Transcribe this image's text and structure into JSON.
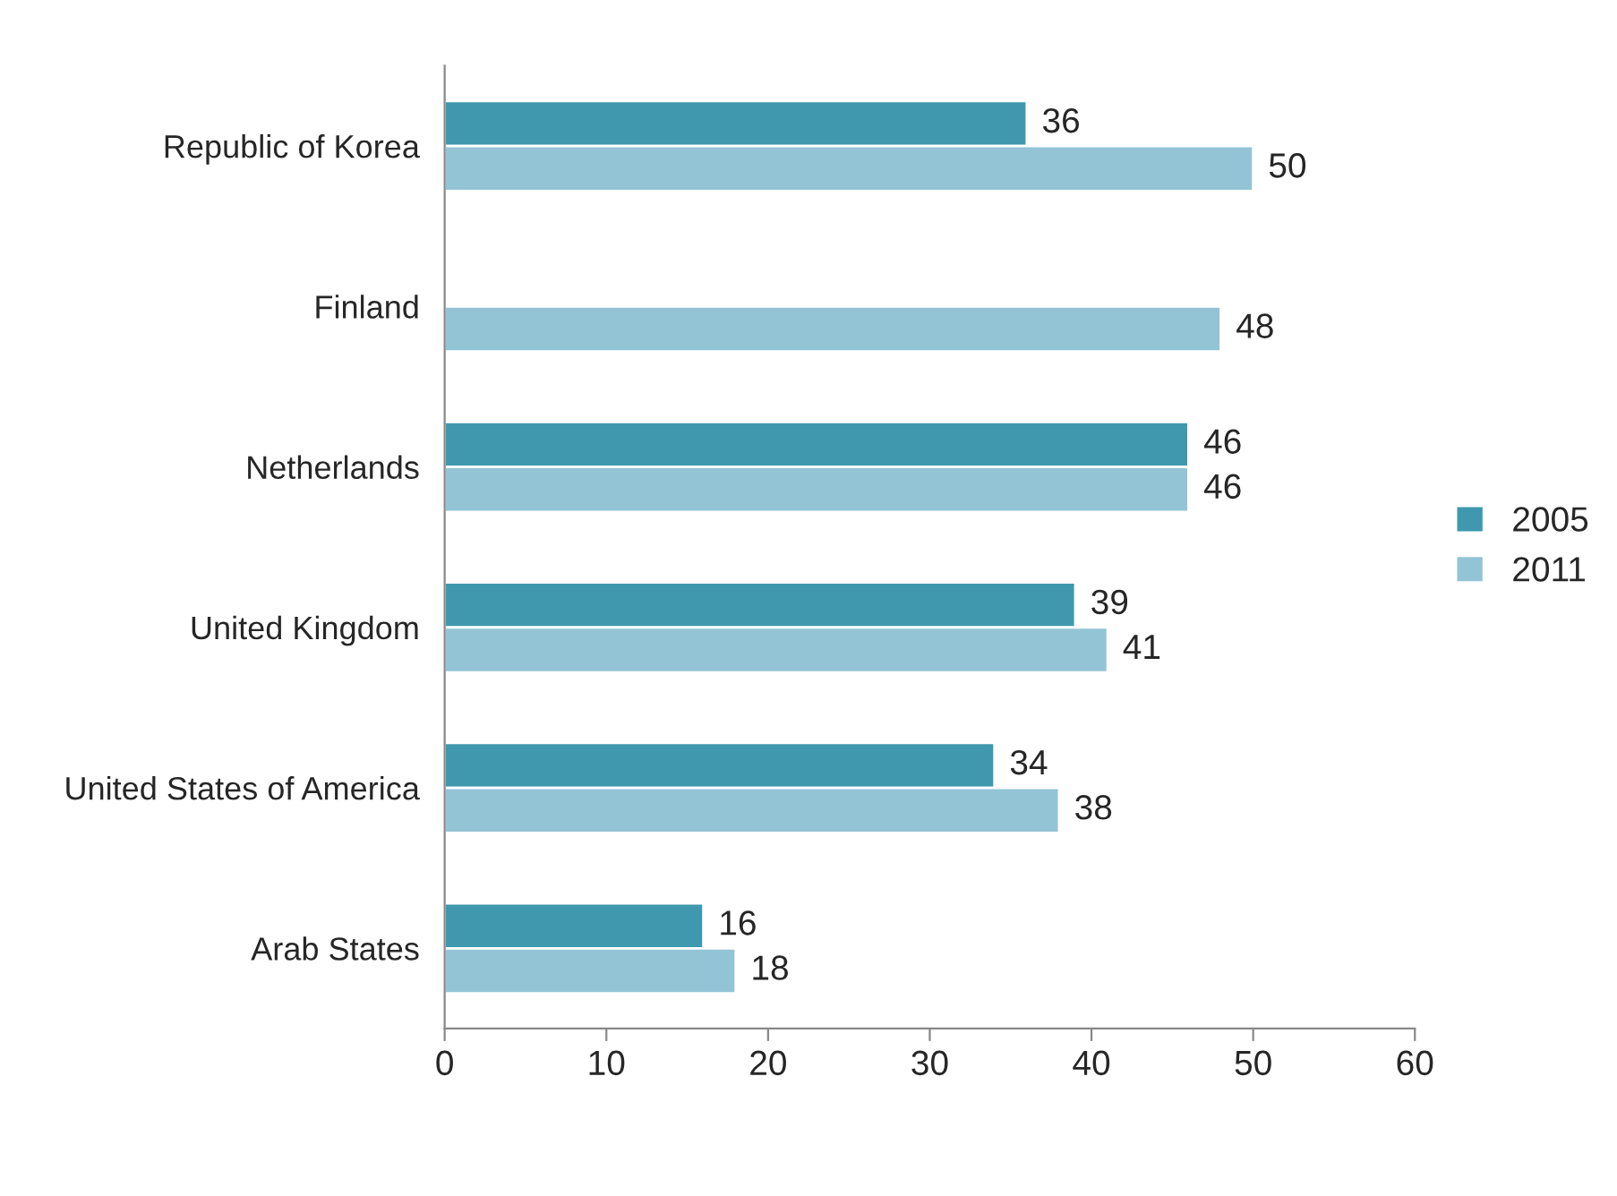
{
  "chart_data": {
    "type": "bar",
    "orientation": "horizontal",
    "categories": [
      "Republic of Korea",
      "Finland",
      "Netherlands",
      "United Kingdom",
      "United States of America",
      "Arab States"
    ],
    "series": [
      {
        "name": "2005",
        "color": "#3f98ad",
        "values": [
          36,
          null,
          46,
          39,
          34,
          16
        ]
      },
      {
        "name": "2011",
        "color": "#93c4d6",
        "values": [
          50,
          48,
          46,
          41,
          38,
          18
        ]
      }
    ],
    "xlim": [
      0,
      60
    ],
    "xticks": [
      0,
      10,
      20,
      30,
      40,
      50,
      60
    ],
    "data_labels": true,
    "grid": false,
    "legend": "right"
  }
}
